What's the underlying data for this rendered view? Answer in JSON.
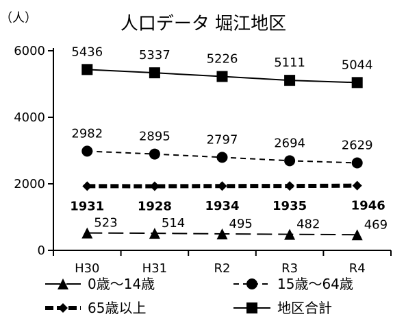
{
  "chart_data": {
    "type": "line",
    "title": "人口データ 堀江地区",
    "ylabel": "（人）",
    "xlabel": "",
    "categories": [
      "H30",
      "H31",
      "R2",
      "R3",
      "R4"
    ],
    "ylim": [
      0,
      6000
    ],
    "yticks": [
      "0",
      "2000",
      "4000",
      "6000"
    ],
    "grid": false,
    "legend_position": "bottom",
    "series": [
      {
        "name": "0歳～14歳",
        "values": [
          523,
          514,
          495,
          482,
          469
        ],
        "marker": "triangle",
        "line_style": "long-dash",
        "color": "#000000"
      },
      {
        "name": "15歳～64歳",
        "values": [
          2982,
          2895,
          2797,
          2694,
          2629
        ],
        "marker": "circle",
        "line_style": "short-dash",
        "color": "#000000"
      },
      {
        "name": "65歳以上",
        "values": [
          1931,
          1928,
          1934,
          1935,
          1946
        ],
        "marker": "diamond",
        "line_style": "heavy-dash",
        "color": "#000000",
        "bold_labels": true
      },
      {
        "name": "地区合計",
        "values": [
          5436,
          5337,
          5226,
          5111,
          5044
        ],
        "marker": "square",
        "line_style": "solid",
        "color": "#000000"
      }
    ]
  }
}
